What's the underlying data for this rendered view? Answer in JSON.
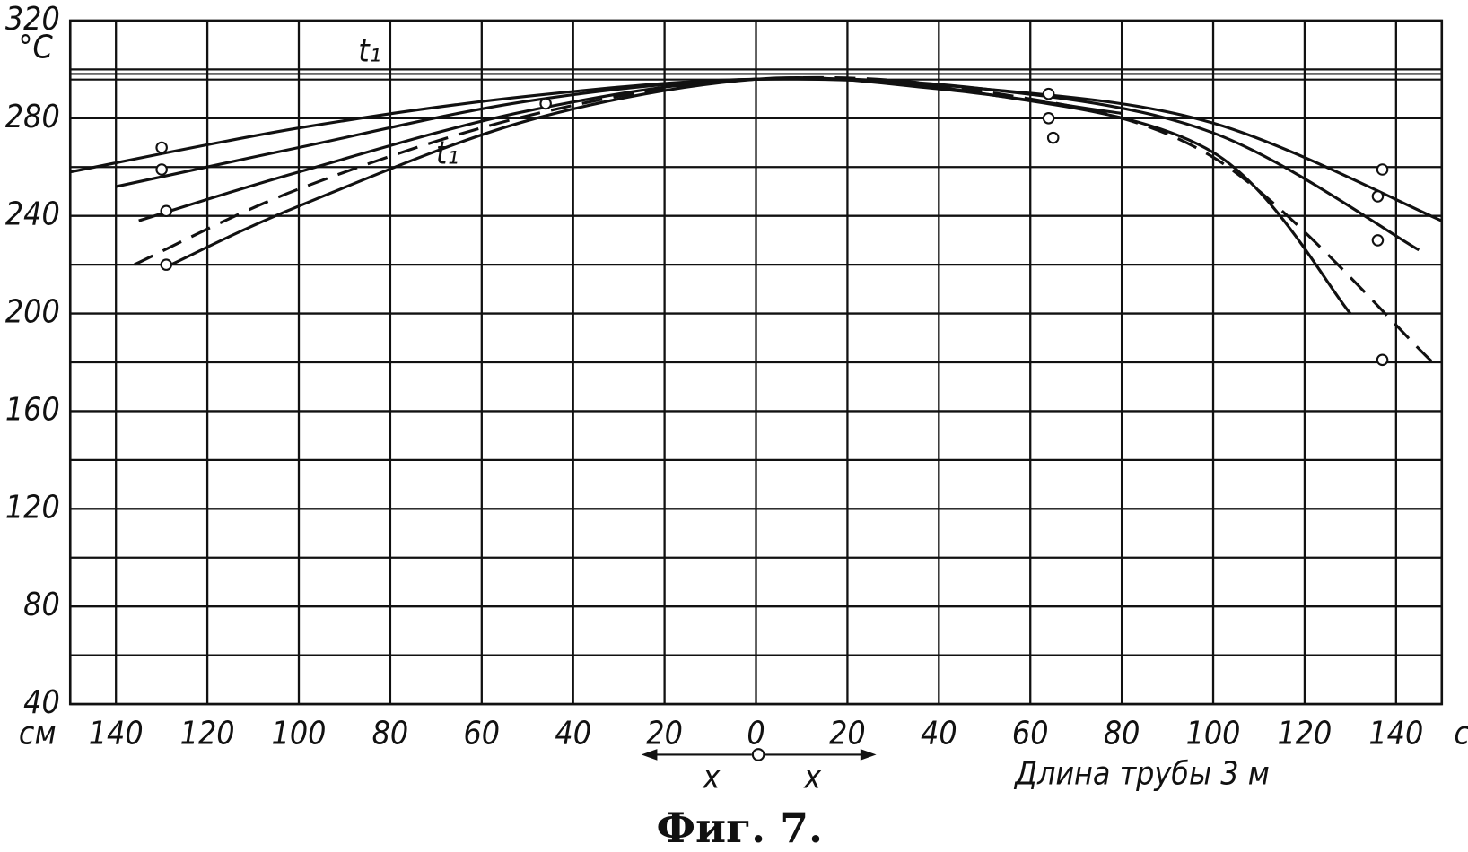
{
  "chart_data": {
    "type": "line",
    "caption": "Фиг. 7.",
    "y_unit": "°C",
    "x_unit": "см",
    "xlabel": "Длина трубы 3 м",
    "direction_label": "x",
    "curve_label": "t₁",
    "reference_line": {
      "label": "t₁",
      "value": 297
    },
    "xlim": [
      -150,
      150
    ],
    "ylim": [
      40,
      320
    ],
    "xticks": [
      {
        "value": -140,
        "label": "140"
      },
      {
        "value": -120,
        "label": "120"
      },
      {
        "value": -100,
        "label": "100"
      },
      {
        "value": -80,
        "label": "80"
      },
      {
        "value": -60,
        "label": "60"
      },
      {
        "value": -40,
        "label": "40"
      },
      {
        "value": -20,
        "label": "20"
      },
      0,
      20,
      40,
      60,
      80,
      100,
      120,
      140
    ],
    "yticks": [
      40,
      80,
      120,
      160,
      200,
      240,
      280,
      320
    ],
    "minor_yticks": [
      60,
      100,
      140,
      180,
      220,
      260,
      300
    ],
    "grid": true,
    "series": [
      {
        "color": "#111111",
        "dash": false,
        "x": [
          -150,
          -100,
          -50,
          0,
          50,
          100,
          150
        ],
        "values": [
          258,
          276,
          289,
          296,
          292,
          278,
          238
        ]
      },
      {
        "color": "#111111",
        "dash": false,
        "x": [
          -140,
          -100,
          -50,
          0,
          50,
          100,
          145
        ],
        "values": [
          252,
          268,
          287,
          296,
          292,
          274,
          226
        ]
      },
      {
        "color": "#111111",
        "dash": false,
        "x": [
          -135,
          -100,
          -50,
          0,
          50,
          100,
          130
        ],
        "values": [
          238,
          258,
          283,
          296,
          290,
          266,
          200
        ]
      },
      {
        "color": "#111111",
        "dash": true,
        "x": [
          -136,
          -100,
          -50,
          0,
          50,
          100,
          148
        ],
        "values": [
          220,
          251,
          281,
          296,
          291,
          264,
          180
        ]
      },
      {
        "color": "#111111",
        "dash": false,
        "x": [
          -128,
          -100,
          -50,
          0,
          40,
          80
        ],
        "values": [
          220,
          244,
          279,
          296,
          292,
          282
        ]
      }
    ],
    "points": {
      "x": [
        -130,
        -130,
        -129,
        -129,
        -46,
        64,
        64,
        65,
        137,
        136,
        136,
        137
      ],
      "values": [
        268,
        259,
        242,
        220,
        286,
        290,
        280,
        272,
        259,
        248,
        230,
        181
      ]
    }
  }
}
